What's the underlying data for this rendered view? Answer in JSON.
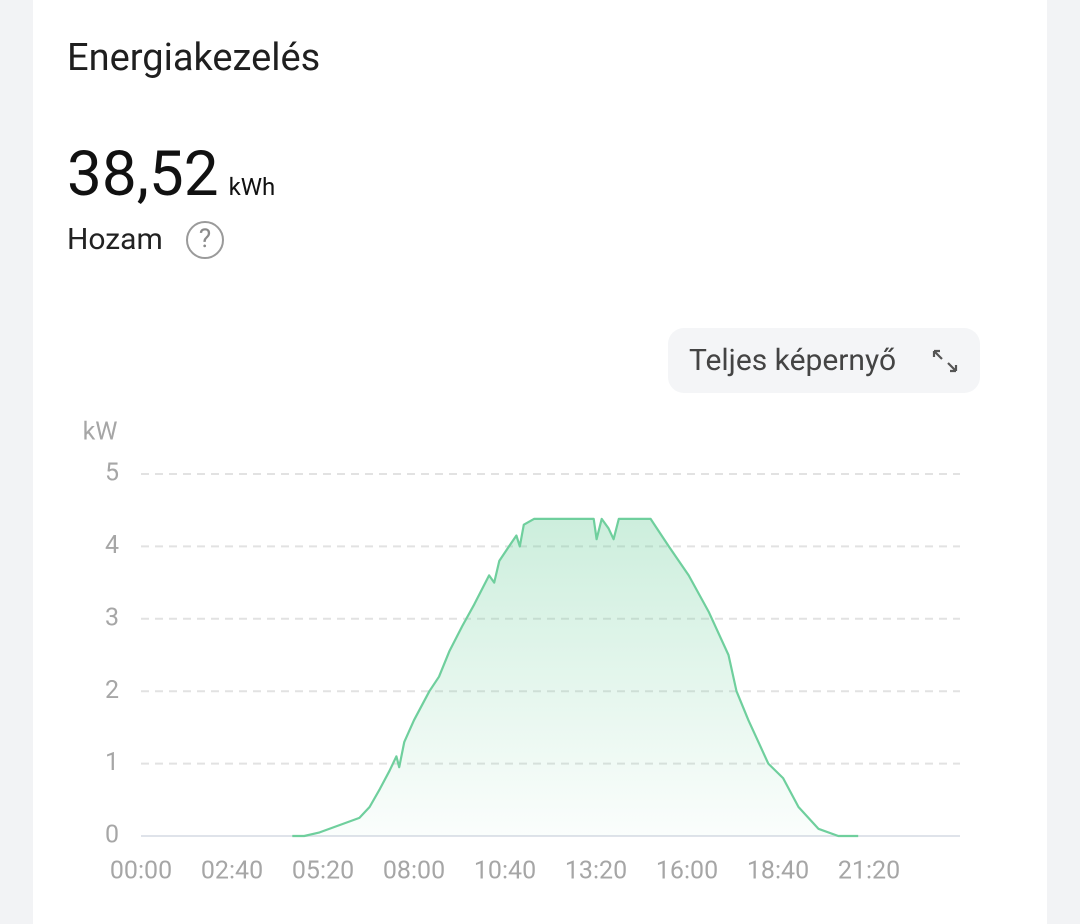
{
  "header": {
    "title": "Energiakezelés"
  },
  "stat": {
    "value": "38,52",
    "unit": "kWh",
    "label": "Hozam",
    "help_icon": "?"
  },
  "fullscreen_button": {
    "label": "Teljes képernyő"
  },
  "chart_data": {
    "type": "area",
    "y_unit": "kW",
    "color": "#6fcf9d",
    "x": [
      "03:00",
      "04:00",
      "04:26",
      "04:47",
      "05:14",
      "05:49",
      "06:24",
      "06:42",
      "07:00",
      "07:17",
      "07:29",
      "07:34",
      "07:43",
      "08:00",
      "08:27",
      "08:44",
      "09:02",
      "09:25",
      "09:46",
      "10:12",
      "10:21",
      "10:30",
      "10:47",
      "11:00",
      "11:06",
      "11:13",
      "11:31",
      "13:16",
      "13:21",
      "13:30",
      "13:42",
      "13:51",
      "14:00",
      "14:56",
      "15:28",
      "16:03",
      "16:38",
      "17:13",
      "17:27",
      "17:48",
      "18:23",
      "18:49",
      "19:16",
      "19:51",
      "20:26",
      "21:01"
    ],
    "values": [
      0.02,
      null,
      0,
      0,
      0.05,
      0.15,
      0.25,
      0.4,
      0.65,
      0.9,
      1.1,
      0.95,
      1.3,
      1.6,
      2.0,
      2.2,
      2.55,
      2.9,
      3.2,
      3.6,
      3.5,
      3.8,
      4.0,
      4.15,
      4.0,
      4.3,
      4.38,
      4.38,
      4.1,
      4.38,
      4.25,
      4.1,
      4.38,
      4.38,
      4.0,
      3.6,
      3.1,
      2.5,
      2.0,
      1.6,
      1.0,
      0.8,
      0.4,
      0.1,
      0,
      0
    ],
    "xlim": [
      "00:00",
      "24:00"
    ],
    "xticks": [
      "00:00",
      "02:40",
      "05:20",
      "08:00",
      "10:40",
      "13:20",
      "16:00",
      "18:40",
      "21:20"
    ],
    "ylim": [
      0,
      5
    ],
    "yticks": [
      0,
      1,
      2,
      3,
      4,
      5
    ],
    "grid": true
  }
}
